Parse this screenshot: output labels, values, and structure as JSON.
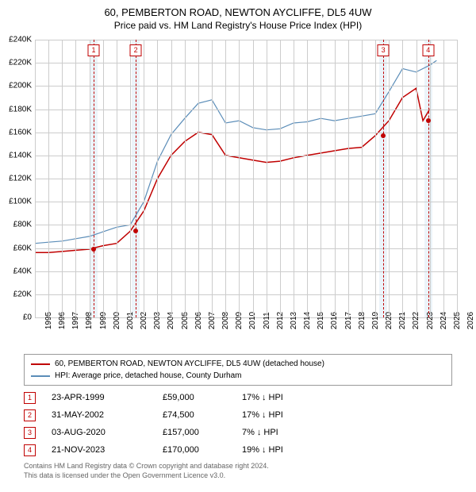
{
  "title": {
    "main": "60, PEMBERTON ROAD, NEWTON AYCLIFFE, DL5 4UW",
    "sub": "Price paid vs. HM Land Registry's House Price Index (HPI)"
  },
  "chart": {
    "type": "line",
    "background_color": "#ffffff",
    "grid_color": "#cccccc",
    "highlight_color": "#e0ecf7",
    "marker_color": "#c00000",
    "x": {
      "min": 1995,
      "max": 2026,
      "step": 1
    },
    "y": {
      "min": 0,
      "max": 240000,
      "step": 20000,
      "prefix": "£",
      "suffix": "K",
      "divisor": 1000
    },
    "series": [
      {
        "name": "60, PEMBERTON ROAD, NEWTON AYCLIFFE, DL5 4UW (detached house)",
        "color": "#c00000",
        "width": 1.5,
        "points": [
          [
            1995,
            56000
          ],
          [
            1996,
            56000
          ],
          [
            1997,
            57000
          ],
          [
            1998,
            58000
          ],
          [
            1999,
            59000
          ],
          [
            2000,
            62000
          ],
          [
            2001,
            64000
          ],
          [
            2002,
            74500
          ],
          [
            2003,
            92000
          ],
          [
            2004,
            120000
          ],
          [
            2005,
            140000
          ],
          [
            2006,
            152000
          ],
          [
            2007,
            160000
          ],
          [
            2008,
            158000
          ],
          [
            2009,
            140000
          ],
          [
            2010,
            138000
          ],
          [
            2011,
            136000
          ],
          [
            2012,
            134000
          ],
          [
            2013,
            135000
          ],
          [
            2014,
            138000
          ],
          [
            2015,
            140000
          ],
          [
            2016,
            142000
          ],
          [
            2017,
            144000
          ],
          [
            2018,
            146000
          ],
          [
            2019,
            147000
          ],
          [
            2020,
            157000
          ],
          [
            2021,
            170000
          ],
          [
            2022,
            190000
          ],
          [
            2023,
            198000
          ],
          [
            2023.5,
            170000
          ],
          [
            2024,
            180000
          ]
        ]
      },
      {
        "name": "HPI: Average price, detached house, County Durham",
        "color": "#5b8db8",
        "width": 1.2,
        "points": [
          [
            1995,
            64000
          ],
          [
            1996,
            65000
          ],
          [
            1997,
            66000
          ],
          [
            1998,
            68000
          ],
          [
            1999,
            70000
          ],
          [
            2000,
            74000
          ],
          [
            2001,
            78000
          ],
          [
            2002,
            80000
          ],
          [
            2003,
            100000
          ],
          [
            2004,
            135000
          ],
          [
            2005,
            158000
          ],
          [
            2006,
            172000
          ],
          [
            2007,
            185000
          ],
          [
            2008,
            188000
          ],
          [
            2009,
            168000
          ],
          [
            2010,
            170000
          ],
          [
            2011,
            164000
          ],
          [
            2012,
            162000
          ],
          [
            2013,
            163000
          ],
          [
            2014,
            168000
          ],
          [
            2015,
            169000
          ],
          [
            2016,
            172000
          ],
          [
            2017,
            170000
          ],
          [
            2018,
            172000
          ],
          [
            2019,
            174000
          ],
          [
            2020,
            176000
          ],
          [
            2021,
            195000
          ],
          [
            2022,
            215000
          ],
          [
            2023,
            212000
          ],
          [
            2024,
            218000
          ],
          [
            2024.5,
            222000
          ]
        ]
      }
    ],
    "highlight_bands": [
      {
        "from": 1999.0,
        "to": 1999.6
      },
      {
        "from": 2002.1,
        "to": 2002.7
      },
      {
        "from": 2020.3,
        "to": 2020.9
      },
      {
        "from": 2023.6,
        "to": 2024.2
      }
    ],
    "markers": [
      {
        "n": "1",
        "x": 1999.31,
        "y": 59000
      },
      {
        "n": "2",
        "x": 2002.41,
        "y": 74500
      },
      {
        "n": "3",
        "x": 2020.59,
        "y": 157000
      },
      {
        "n": "4",
        "x": 2023.89,
        "y": 170000
      }
    ]
  },
  "legend": [
    {
      "color": "#c00000",
      "label": "60, PEMBERTON ROAD, NEWTON AYCLIFFE, DL5 4UW (detached house)"
    },
    {
      "color": "#5b8db8",
      "label": "HPI: Average price, detached house, County Durham"
    }
  ],
  "transactions": [
    {
      "n": "1",
      "date": "23-APR-1999",
      "price": "£59,000",
      "diff": "17%",
      "dir": "↓",
      "vs": "HPI"
    },
    {
      "n": "2",
      "date": "31-MAY-2002",
      "price": "£74,500",
      "diff": "17%",
      "dir": "↓",
      "vs": "HPI"
    },
    {
      "n": "3",
      "date": "03-AUG-2020",
      "price": "£157,000",
      "diff": "7%",
      "dir": "↓",
      "vs": "HPI"
    },
    {
      "n": "4",
      "date": "21-NOV-2023",
      "price": "£170,000",
      "diff": "19%",
      "dir": "↓",
      "vs": "HPI"
    }
  ],
  "footer": {
    "line1": "Contains HM Land Registry data © Crown copyright and database right 2024.",
    "line2": "This data is licensed under the Open Government Licence v3.0."
  }
}
